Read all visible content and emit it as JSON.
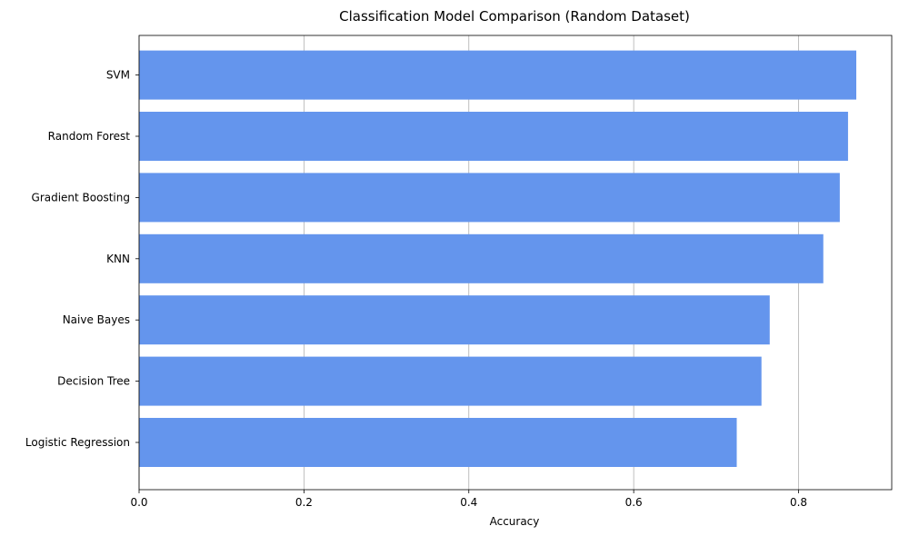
{
  "chart_data": {
    "type": "bar",
    "orientation": "horizontal",
    "title": "Classification Model Comparison (Random Dataset)",
    "xlabel": "Accuracy",
    "ylabel": "",
    "categories": [
      "Logistic Regression",
      "Decision Tree",
      "Naive Bayes",
      "KNN",
      "Gradient Boosting",
      "Random Forest",
      "SVM"
    ],
    "values": [
      0.725,
      0.755,
      0.765,
      0.83,
      0.85,
      0.86,
      0.87
    ],
    "xlim": [
      0,
      0.913
    ],
    "xticks": [
      0.0,
      0.2,
      0.4,
      0.6,
      0.8
    ],
    "xtick_labels": [
      "0.0",
      "0.2",
      "0.4",
      "0.6",
      "0.8"
    ],
    "grid": "x-axis vertical lines",
    "bar_color": "#6495ed",
    "grid_color": "#b0b0b0"
  }
}
